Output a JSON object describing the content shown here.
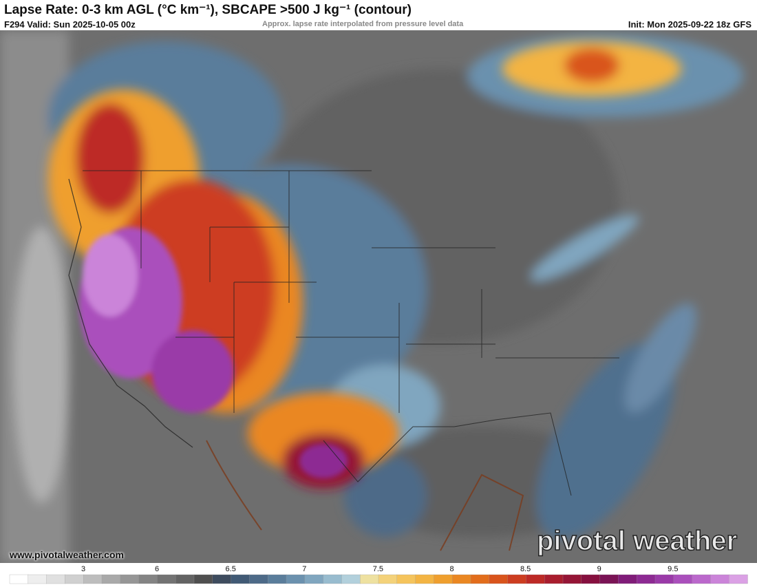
{
  "header": {
    "title": "Lapse Rate: 0-3 km AGL (°C km⁻¹), SBCAPE >500 J kg⁻¹ (contour)",
    "valid": "F294 Valid: Sun 2025-10-05 00z",
    "note": "Approx. lapse rate interpolated from pressure level data",
    "init": "Init: Mon 2025-09-22 18z GFS"
  },
  "footer": {
    "url": "www.pivotalweather.com",
    "watermark": "pivotal weather"
  },
  "colorbar": {
    "labels": [
      3,
      6,
      6.5,
      7,
      7.5,
      8,
      8.5,
      9,
      9.5
    ],
    "colors": [
      "#ffffff",
      "#eeeeee",
      "#e0e0e0",
      "#d0d0d0",
      "#bdbdbd",
      "#a9a9a9",
      "#969696",
      "#848484",
      "#737373",
      "#636363",
      "#4f4f4f",
      "#3e4c5e",
      "#415a75",
      "#4d6a88",
      "#5a7d9b",
      "#6b91ae",
      "#80a6bf",
      "#98bccf",
      "#b2d0dc",
      "#eee1a0",
      "#f4d27a",
      "#f5c45c",
      "#f3b443",
      "#ef9f2e",
      "#ea8722",
      "#e26d1c",
      "#d9541c",
      "#cd3d20",
      "#bd2a26",
      "#a91d2e",
      "#951536",
      "#86103f",
      "#7a1355",
      "#801c79",
      "#8d2a93",
      "#9a3aa8",
      "#aa4fbc",
      "#bb68cc",
      "#cb84d9",
      "#dba1e5"
    ]
  }
}
